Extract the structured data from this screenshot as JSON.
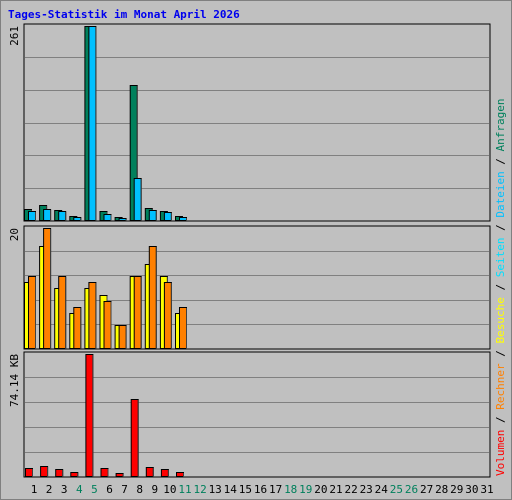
{
  "title": "Tages-Statistik im Monat April 2026",
  "colors": {
    "anfragen": "#00805c",
    "dateien": "#00c0ff",
    "seiten": "#00e0ff",
    "besuche": "#ffff00",
    "rechner": "#ff8000",
    "volumen": "#ff0000",
    "weekend_day": "#00805c",
    "weekday": "#000000"
  },
  "chart_data": [
    {
      "type": "bar",
      "panel": "hits",
      "ymax_label": "261",
      "ylim": [
        0,
        261
      ],
      "grid": true,
      "categories": [
        "1",
        "2",
        "3",
        "4",
        "5",
        "6",
        "7",
        "8",
        "9",
        "10",
        "11"
      ],
      "series": [
        {
          "name": "Anfragen",
          "values": [
            16,
            21,
            15,
            7,
            261,
            14,
            5,
            182,
            18,
            13,
            7
          ]
        },
        {
          "name": "Dateien",
          "values": [
            13,
            16,
            13,
            6,
            261,
            10,
            4,
            58,
            15,
            12,
            6
          ]
        }
      ]
    },
    {
      "type": "bar",
      "panel": "visits",
      "ymax_label": "20",
      "ylim": [
        0,
        20
      ],
      "grid": true,
      "categories": [
        "1",
        "2",
        "3",
        "4",
        "5",
        "6",
        "7",
        "8",
        "9",
        "10",
        "11"
      ],
      "series": [
        {
          "name": "Besuche",
          "values": [
            11,
            17,
            10,
            6,
            10,
            9,
            4,
            12,
            14,
            12,
            6
          ]
        },
        {
          "name": "Rechner",
          "values": [
            12,
            20,
            12,
            7,
            11,
            8,
            4,
            12,
            17,
            11,
            7
          ]
        }
      ]
    },
    {
      "type": "bar",
      "panel": "volume",
      "ymax_label": "74.14 KB",
      "ylim": [
        0,
        74.14
      ],
      "grid": true,
      "categories": [
        "1",
        "2",
        "3",
        "4",
        "5",
        "6",
        "7",
        "8",
        "9",
        "10",
        "11"
      ],
      "series": [
        {
          "name": "Volumen",
          "values": [
            5.5,
            6.8,
            4.8,
            3.0,
            74.14,
            5.2,
            2.2,
            47.0,
            5.9,
            4.8,
            3.0
          ]
        }
      ]
    }
  ],
  "x_axis": {
    "days": [
      "1",
      "2",
      "3",
      "4",
      "5",
      "6",
      "7",
      "8",
      "9",
      "10",
      "11",
      "12",
      "13",
      "14",
      "15",
      "16",
      "17",
      "18",
      "19",
      "20",
      "21",
      "22",
      "23",
      "24",
      "25",
      "26",
      "27",
      "28",
      "29",
      "30",
      "31"
    ],
    "weekend": [
      "4",
      "5",
      "11",
      "12",
      "18",
      "19",
      "25",
      "26"
    ]
  },
  "legend_right": [
    {
      "text": "Volumen",
      "color_key": "volumen"
    },
    {
      "text": " / ",
      "color_key": "weekday"
    },
    {
      "text": "Rechner",
      "color_key": "rechner"
    },
    {
      "text": " / ",
      "color_key": "weekday"
    },
    {
      "text": "Besuche",
      "color_key": "besuche"
    },
    {
      "text": " / ",
      "color_key": "weekday"
    },
    {
      "text": "Seiten",
      "color_key": "seiten"
    },
    {
      "text": " / ",
      "color_key": "weekday"
    },
    {
      "text": "Dateien",
      "color_key": "dateien"
    },
    {
      "text": " / ",
      "color_key": "weekday"
    },
    {
      "text": "Anfragen",
      "color_key": "anfragen"
    }
  ]
}
